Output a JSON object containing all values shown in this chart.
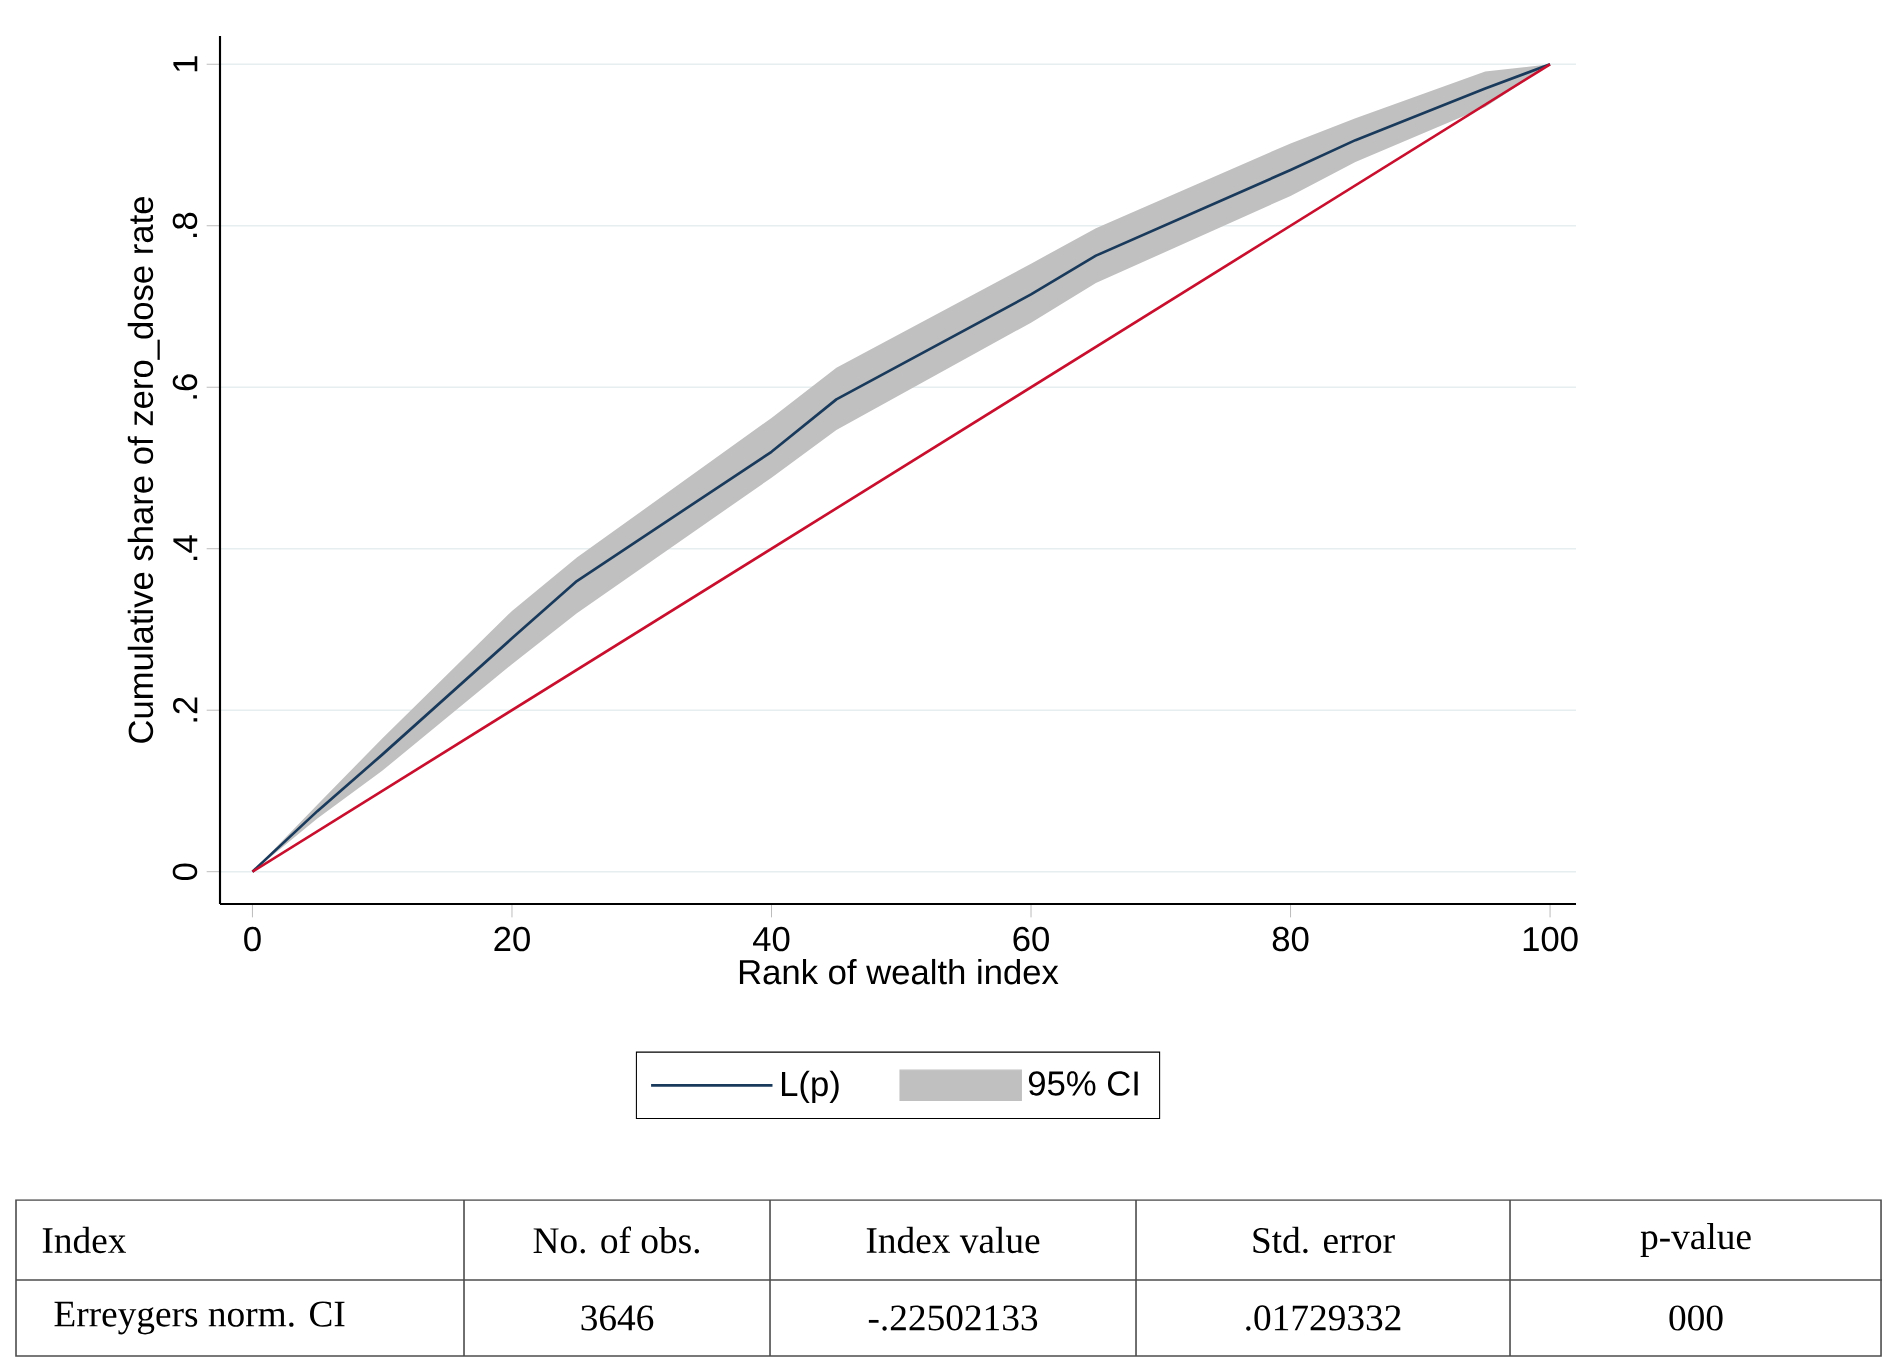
{
  "chart_data": {
    "type": "line",
    "xlabel": "Rank of wealth index",
    "ylabel": "Cumulative share of zero_dose rate",
    "x": [
      0,
      5,
      10,
      20,
      25,
      40,
      45,
      60,
      65,
      80,
      85,
      95,
      100
    ],
    "series": [
      {
        "name": "L(p)",
        "color": "#1a3a5c",
        "values": [
          0,
          0.075,
          0.145,
          0.289,
          0.36,
          0.52,
          0.585,
          0.715,
          0.763,
          0.869,
          0.906,
          0.97,
          1
        ],
        "lower": [
          0,
          0.066,
          0.125,
          0.257,
          0.32,
          0.488,
          0.547,
          0.68,
          0.729,
          0.837,
          0.879,
          0.947,
          1
        ],
        "upper": [
          0,
          0.083,
          0.165,
          0.323,
          0.389,
          0.562,
          0.624,
          0.753,
          0.797,
          0.902,
          0.933,
          0.991,
          1
        ]
      },
      {
        "color": "#c8102e",
        "x": [
          0,
          100
        ],
        "values": [
          0,
          1
        ]
      }
    ],
    "xlim": [
      -2.5,
      102
    ],
    "ylim": [
      -0.04,
      1.035
    ],
    "xticks": [
      0,
      20,
      40,
      60,
      80,
      100
    ],
    "yticks": [
      0,
      {
        "value": 0.2,
        "label": ".2"
      },
      {
        "value": 0.4,
        "label": ".4"
      },
      {
        "value": 0.6,
        "label": ".6"
      },
      {
        "value": 0.8,
        "label": ".8"
      },
      1
    ],
    "grid": "y",
    "legend": "bottom",
    "annotations": [
      "Index",
      "No. of obs.",
      "Index value",
      "Std. error",
      "p-value",
      "Erreygers norm. CI",
      "3646",
      "-.22502133",
      ".01729332",
      "000",
      "95% CI"
    ]
  }
}
